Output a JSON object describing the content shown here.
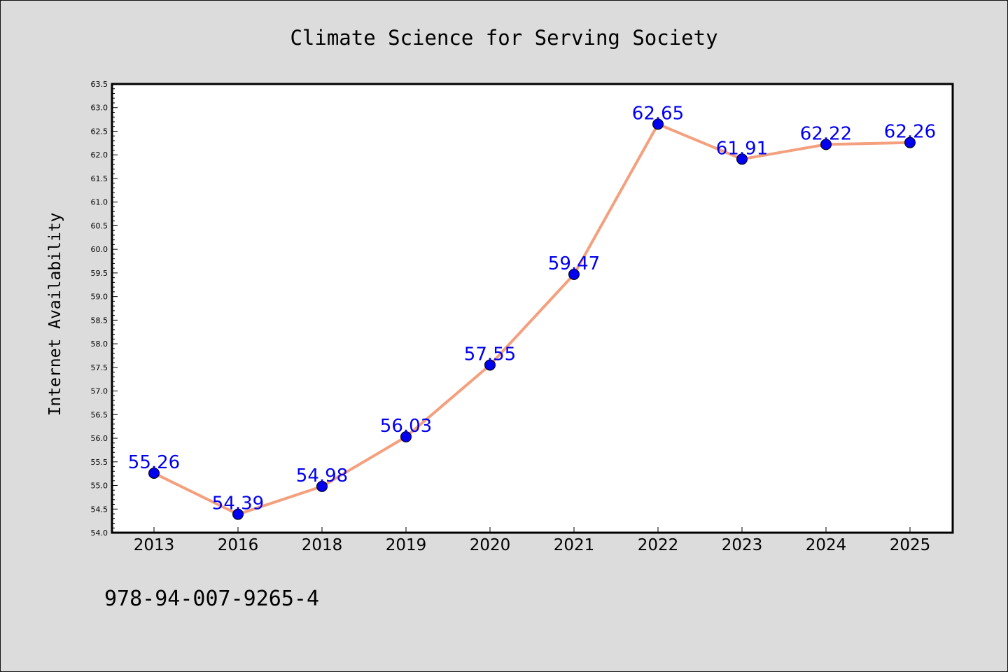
{
  "chart_data": {
    "type": "line",
    "title": "Climate Science for Serving Society",
    "xlabel": "",
    "ylabel": "Internet Availability",
    "categories": [
      "2013",
      "2016",
      "2018",
      "2019",
      "2020",
      "2021",
      "2022",
      "2023",
      "2024",
      "2025"
    ],
    "series": [
      {
        "values": [
          55.26,
          54.39,
          54.98,
          56.03,
          57.55,
          59.47,
          62.65,
          61.91,
          62.22,
          62.26
        ],
        "labels": [
          "55.26",
          "54.39",
          "54.98",
          "56.03",
          "57.55",
          "59.47",
          "62.65",
          "61.91",
          "62.22",
          "62.26"
        ]
      }
    ],
    "ylim": [
      54.0,
      63.5
    ],
    "yticks": [
      "54.0",
      "54.5",
      "55.0",
      "55.5",
      "56.0",
      "56.5",
      "57.0",
      "57.5",
      "58.0",
      "58.5",
      "59.0",
      "59.5",
      "60.0",
      "60.5",
      "61.0",
      "61.5",
      "62.0",
      "62.5",
      "63.0",
      "63.5"
    ],
    "grid": false,
    "legend": "none",
    "colors": {
      "line": "#f4a07e",
      "marker": "#0000ee",
      "data_label": "#0000ee",
      "plot_background": "#ffffff",
      "figure_background": "#dcdcdc"
    }
  },
  "footer": {
    "isbn": "978-94-007-9265-4"
  }
}
